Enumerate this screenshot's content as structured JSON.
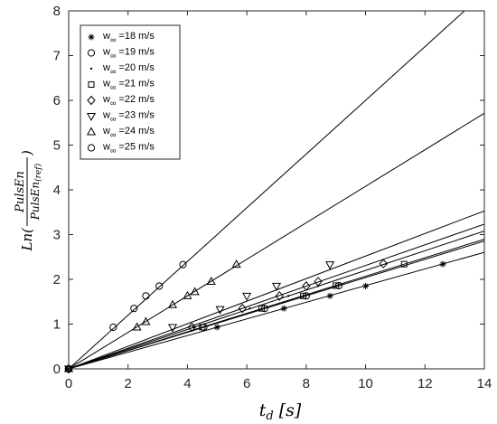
{
  "chart_data": {
    "type": "scatter",
    "title": "",
    "xlabel": {
      "main": "t",
      "sub": "d",
      "unit": "[s]"
    },
    "ylabel": {
      "prefix": "Ln(",
      "numerator": "PulsEn",
      "denominator": "PulsEn",
      "denominator_sub": "(ref)",
      "suffix": ")"
    },
    "xlim": [
      0,
      14
    ],
    "ylim": [
      0,
      8
    ],
    "xticks": [
      0,
      2,
      4,
      6,
      8,
      10,
      12,
      14
    ],
    "yticks": [
      0,
      1,
      2,
      3,
      4,
      5,
      6,
      7,
      8
    ],
    "grid": false,
    "legend_position": "top-left",
    "legend_symbol": "w",
    "legend_subscript": "∞",
    "series": [
      {
        "name": "=18 m/s",
        "marker": "asterisk",
        "slope": 0.186,
        "x": [
          0,
          5.0,
          7.25,
          8.8,
          10.0,
          12.6
        ],
        "y": [
          0,
          0.93,
          1.35,
          1.63,
          1.85,
          2.34
        ]
      },
      {
        "name": "=19 m/s",
        "marker": "circle",
        "slope": 0.204,
        "x": [
          0,
          4.55,
          6.6,
          8.0,
          9.1
        ],
        "y": [
          0,
          0.93,
          1.35,
          1.63,
          1.86
        ]
      },
      {
        "name": "=20 m/s",
        "marker": "point",
        "slope": 0.22,
        "x": [
          0,
          4.2,
          6.1,
          7.4,
          8.4,
          10.7
        ],
        "y": [
          0,
          0.93,
          1.35,
          1.63,
          1.85,
          2.35
        ]
      },
      {
        "name": "=21 m/s",
        "marker": "square",
        "slope": 0.207,
        "x": [
          0,
          4.5,
          6.5,
          7.9,
          9.0,
          11.3
        ],
        "y": [
          0,
          0.93,
          1.35,
          1.63,
          1.86,
          2.34
        ]
      },
      {
        "name": "=22 m/s",
        "marker": "diamond",
        "slope": 0.231,
        "x": [
          0,
          4.15,
          5.85,
          7.1,
          8.0,
          8.4,
          10.6
        ],
        "y": [
          0,
          0.93,
          1.35,
          1.63,
          1.85,
          1.95,
          2.35
        ]
      },
      {
        "name": "=23 m/s",
        "marker": "triangle-down",
        "slope": 0.252,
        "x": [
          0,
          3.5,
          5.1,
          6.0,
          7.0,
          8.8
        ],
        "y": [
          0,
          0.93,
          1.33,
          1.63,
          1.85,
          2.33
        ]
      },
      {
        "name": "=24 m/s",
        "marker": "triangle-up",
        "slope": 0.408,
        "x": [
          0,
          2.3,
          2.6,
          3.5,
          4.0,
          4.25,
          4.8,
          5.65
        ],
        "y": [
          0,
          0.93,
          1.05,
          1.43,
          1.63,
          1.72,
          1.95,
          2.33
        ]
      },
      {
        "name": "=25 m/s",
        "marker": "circle",
        "slope": 0.6,
        "x": [
          0,
          1.5,
          2.2,
          2.6,
          3.05,
          3.85
        ],
        "y": [
          0,
          0.93,
          1.35,
          1.63,
          1.85,
          2.33
        ]
      }
    ]
  }
}
